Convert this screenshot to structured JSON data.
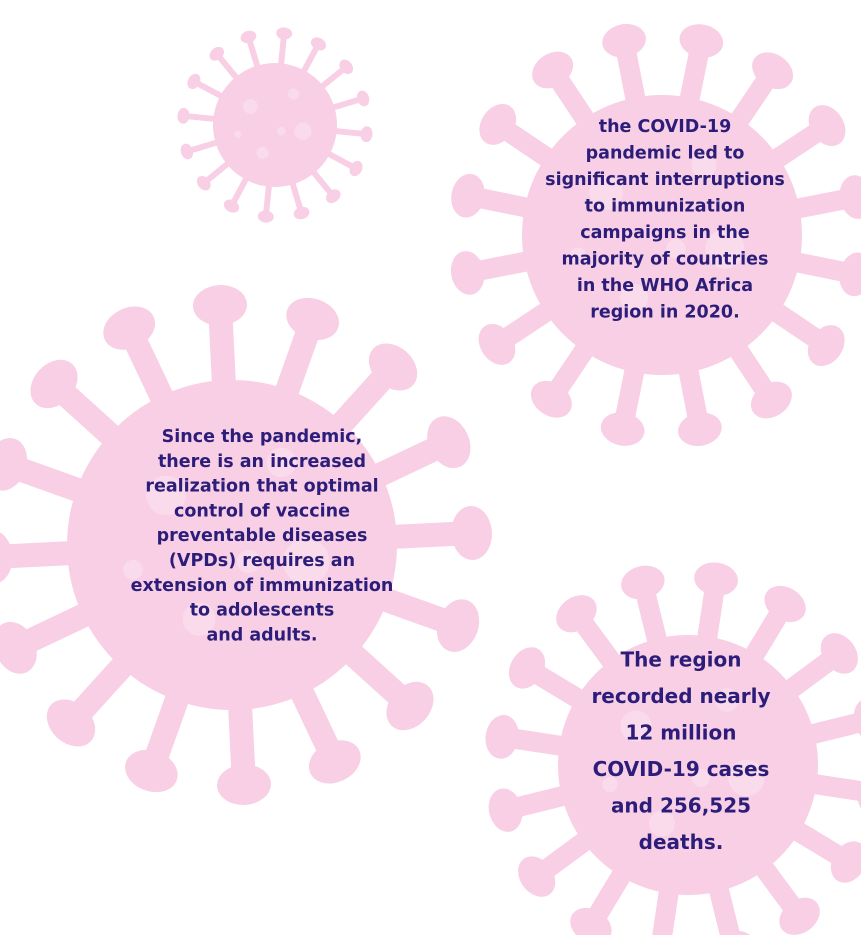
{
  "callouts": [
    {
      "lines": [
        "the COVID-19",
        "pandemic led to",
        "significant interruptions",
        "to immunization",
        "campaigns in the",
        "majority of countries",
        "in the WHO Africa",
        "region in 2020."
      ]
    },
    {
      "lines": [
        "Since the pandemic,",
        "there is an increased",
        "realization that optimal",
        "control of vaccine",
        "preventable diseases",
        "(VPDs) requires an",
        "extension of immunization",
        "to adolescents",
        "and adults."
      ]
    },
    {
      "lines": [
        "The region",
        "recorded nearly",
        "12 million",
        "COVID-19 cases",
        "and 256,525",
        "deaths."
      ]
    }
  ]
}
